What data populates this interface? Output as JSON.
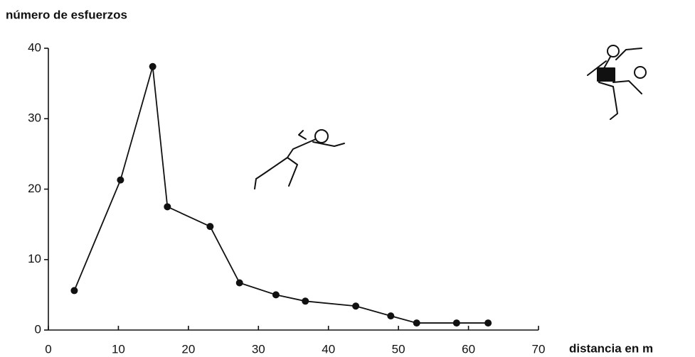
{
  "chart_data": {
    "type": "line",
    "title": "número de esfuerzos",
    "x_label": "distancia en m",
    "x": [
      3.7,
      10.3,
      14.9,
      17.0,
      23.1,
      27.3,
      32.5,
      36.7,
      43.9,
      48.9,
      52.6,
      58.3,
      62.8
    ],
    "values": [
      5.6,
      21.3,
      37.4,
      17.5,
      14.7,
      6.7,
      5.0,
      4.1,
      3.4,
      2.0,
      1.0,
      1.0,
      1.0
    ],
    "color": "#111111",
    "xlim": [
      0,
      70
    ],
    "xticks": [
      0,
      10,
      20,
      30,
      40,
      50,
      60,
      70
    ],
    "ylim": [
      0,
      40
    ],
    "yticks": [
      0,
      10,
      20,
      30,
      40
    ],
    "grid": false
  }
}
